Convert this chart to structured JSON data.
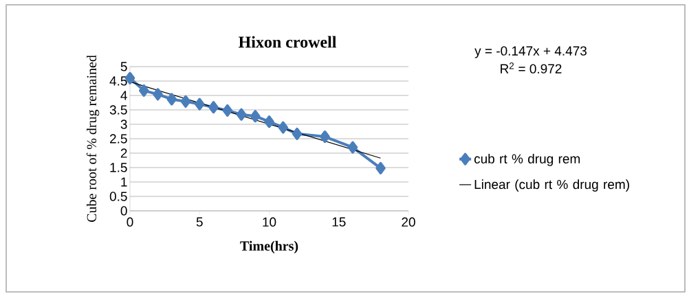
{
  "chart_data": {
    "type": "line",
    "title": "Hixon crowell",
    "xlabel": "Time(hrs)",
    "ylabel": "Cube root of % drug remained",
    "annotations": [
      "y = -0.147x + 4.473",
      "R$^{2}$ = 0.972"
    ],
    "x": [
      0,
      1,
      2,
      3,
      4,
      5,
      6,
      7,
      8,
      9,
      10,
      11,
      12,
      14,
      16,
      18
    ],
    "series": [
      {
        "name": "cub rt % drug rem",
        "color": "#4a7ebb",
        "marker": "diamond",
        "values": [
          4.6,
          4.17,
          4.04,
          3.87,
          3.79,
          3.7,
          3.59,
          3.48,
          3.34,
          3.28,
          3.09,
          2.89,
          2.67,
          2.57,
          2.2,
          1.48
        ]
      },
      {
        "name": "Linear (cub rt % drug rem)",
        "type": "line",
        "color": "#000000",
        "marker": "none",
        "x": [
          0,
          18
        ],
        "values": [
          4.473,
          1.827
        ]
      }
    ],
    "xlim": [
      0,
      20
    ],
    "xticks": [
      0,
      5,
      10,
      15,
      20
    ],
    "ylim": [
      0,
      5
    ],
    "yticks": [
      0,
      0.5,
      1,
      1.5,
      2,
      2.5,
      3,
      3.5,
      4,
      4.5,
      5
    ],
    "grid": "y",
    "legend": "right"
  }
}
